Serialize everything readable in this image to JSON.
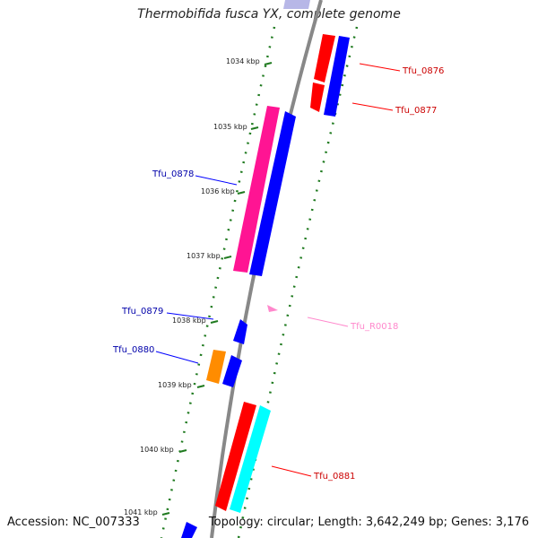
{
  "title": "Thermobifida fusca YX, complete genome",
  "accession": "Accession: NC_007333",
  "summary": "Topology: circular; Length: 3,642,249 bp; Genes: 3,176",
  "colors": {
    "backbone": "#888888",
    "tick": "#1f7a1f",
    "red": "#ff0000",
    "magenta": "#ff1493",
    "blue": "#0000ff",
    "orange": "#ff8c00",
    "cyan": "#00ffff",
    "lightpink": "#ff88cc",
    "darkblue": "#0000aa",
    "darkred": "#cc0000"
  },
  "ticks": [
    {
      "label": "1034 kbp"
    },
    {
      "label": "1035 kbp"
    },
    {
      "label": "1036 kbp"
    },
    {
      "label": "1037 kbp"
    },
    {
      "label": "1038 kbp"
    },
    {
      "label": "1039 kbp"
    },
    {
      "label": "1040 kbp"
    },
    {
      "label": "1041 kbp"
    }
  ],
  "genes": [
    {
      "name": "Tfu_0876",
      "color_key": "darkred"
    },
    {
      "name": "Tfu_0877",
      "color_key": "darkred"
    },
    {
      "name": "Tfu_0878",
      "color_key": "darkblue"
    },
    {
      "name": "Tfu_0879",
      "color_key": "darkblue"
    },
    {
      "name": "Tfu_0880",
      "color_key": "darkblue"
    },
    {
      "name": "Tfu_R0018",
      "color_key": "lightpink"
    },
    {
      "name": "Tfu_0881",
      "color_key": "darkred"
    }
  ]
}
